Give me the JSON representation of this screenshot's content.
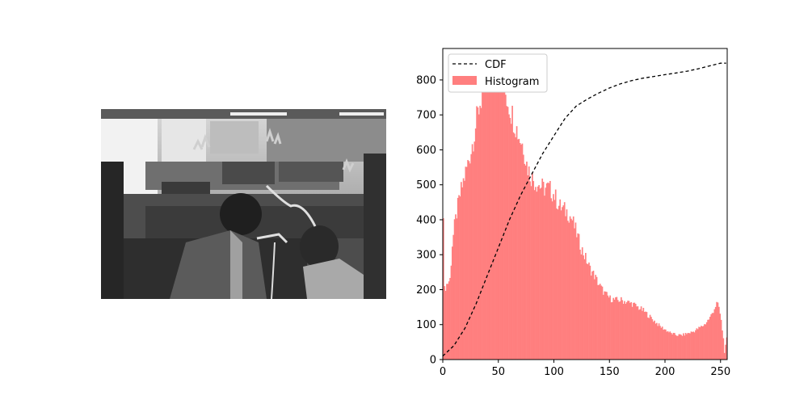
{
  "figure": {
    "left_panel": {
      "type": "image",
      "description_tag": "grayscale-photo"
    }
  },
  "chart_data": {
    "type": "bar",
    "title": "",
    "xlabel": "",
    "ylabel": "",
    "xlim": [
      0,
      255
    ],
    "ylim": [
      0,
      890
    ],
    "xticks": [
      0,
      50,
      100,
      150,
      200,
      250
    ],
    "yticks": [
      0,
      100,
      200,
      300,
      400,
      500,
      600,
      700,
      800
    ],
    "legend": {
      "placement": "upper-left",
      "entries": [
        "CDF",
        "Histogram"
      ]
    },
    "colors": {
      "histogram": "#ff7f7f",
      "cdf": "#000000"
    },
    "histogram_anchors": [
      [
        0,
        430
      ],
      [
        1,
        200
      ],
      [
        3,
        215
      ],
      [
        6,
        230
      ],
      [
        8,
        330
      ],
      [
        10,
        380
      ],
      [
        12,
        420
      ],
      [
        15,
        470
      ],
      [
        18,
        510
      ],
      [
        22,
        560
      ],
      [
        25,
        600
      ],
      [
        28,
        650
      ],
      [
        32,
        720
      ],
      [
        35,
        760
      ],
      [
        38,
        800
      ],
      [
        42,
        830
      ],
      [
        46,
        850
      ],
      [
        50,
        820
      ],
      [
        53,
        800
      ],
      [
        56,
        760
      ],
      [
        60,
        720
      ],
      [
        64,
        680
      ],
      [
        68,
        640
      ],
      [
        72,
        610
      ],
      [
        75,
        560
      ],
      [
        78,
        530
      ],
      [
        82,
        510
      ],
      [
        86,
        500
      ],
      [
        90,
        490
      ],
      [
        95,
        490
      ],
      [
        100,
        470
      ],
      [
        104,
        440
      ],
      [
        108,
        430
      ],
      [
        112,
        420
      ],
      [
        116,
        400
      ],
      [
        120,
        360
      ],
      [
        124,
        320
      ],
      [
        128,
        290
      ],
      [
        132,
        260
      ],
      [
        136,
        240
      ],
      [
        140,
        215
      ],
      [
        145,
        190
      ],
      [
        150,
        175
      ],
      [
        155,
        170
      ],
      [
        160,
        170
      ],
      [
        165,
        165
      ],
      [
        170,
        160
      ],
      [
        175,
        150
      ],
      [
        180,
        140
      ],
      [
        185,
        125
      ],
      [
        190,
        110
      ],
      [
        195,
        95
      ],
      [
        200,
        85
      ],
      [
        205,
        75
      ],
      [
        210,
        70
      ],
      [
        215,
        70
      ],
      [
        220,
        75
      ],
      [
        225,
        80
      ],
      [
        230,
        90
      ],
      [
        235,
        100
      ],
      [
        240,
        120
      ],
      [
        243,
        140
      ],
      [
        246,
        160
      ],
      [
        248,
        150
      ],
      [
        250,
        110
      ],
      [
        252,
        60
      ],
      [
        253,
        20
      ],
      [
        254,
        40
      ],
      [
        255,
        60
      ]
    ],
    "cdf_anchors": [
      [
        0,
        10
      ],
      [
        10,
        40
      ],
      [
        20,
        90
      ],
      [
        30,
        160
      ],
      [
        40,
        240
      ],
      [
        50,
        320
      ],
      [
        60,
        400
      ],
      [
        70,
        470
      ],
      [
        80,
        530
      ],
      [
        90,
        590
      ],
      [
        100,
        640
      ],
      [
        110,
        690
      ],
      [
        120,
        725
      ],
      [
        130,
        745
      ],
      [
        140,
        762
      ],
      [
        150,
        777
      ],
      [
        160,
        789
      ],
      [
        170,
        798
      ],
      [
        180,
        805
      ],
      [
        190,
        810
      ],
      [
        200,
        815
      ],
      [
        210,
        820
      ],
      [
        220,
        825
      ],
      [
        230,
        832
      ],
      [
        240,
        840
      ],
      [
        250,
        848
      ],
      [
        255,
        848
      ]
    ]
  }
}
